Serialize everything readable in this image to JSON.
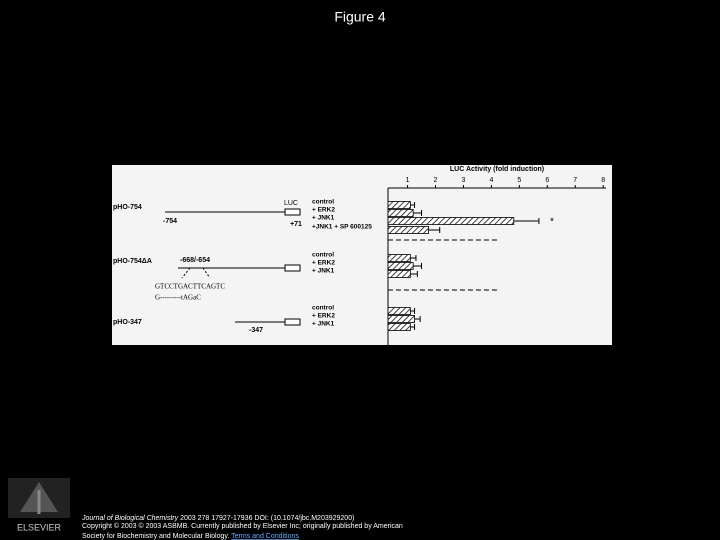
{
  "slide_title": "Figure 4",
  "figure": {
    "constructs": [
      {
        "name": "pHO-754",
        "labels": [
          "-754",
          "+71"
        ]
      },
      {
        "name": "pHO-754ΔA",
        "labels": [
          "-668/-654"
        ]
      },
      {
        "name": "pHO-347",
        "labels": [
          "-347"
        ]
      }
    ],
    "luc_label": "LUC",
    "sequence_wt": "GTCCTGACTTCAGTC",
    "sequence_mut": "G---------tAGaC"
  },
  "chart_data": {
    "type": "bar",
    "x_label": "LUC Activity (fold induction)",
    "categories": [
      "control",
      "+ ERK2",
      "+ JNK1",
      "+JNK1 + SP 600125",
      "control",
      "+ ERK2",
      "+ JNK1",
      "control",
      "+ ERK2",
      "+ JNK1"
    ],
    "values": [
      1.1,
      1.2,
      4.8,
      1.75,
      1.1,
      1.2,
      1.1,
      1.1,
      1.25,
      1.1
    ],
    "errors": [
      0.15,
      0.3,
      0.9,
      0.4,
      0.2,
      0.3,
      0.25,
      0.15,
      0.2,
      0.15
    ],
    "xlim": [
      0.3,
      8.1
    ],
    "xticks": [
      1,
      2,
      3,
      4,
      5,
      6,
      7,
      8
    ],
    "annotation": "*"
  },
  "publisher": "ELSEVIER",
  "citation": {
    "journal": "Journal of Biological Chemistry",
    "details": "2003 278 17927-17936 DOI: (10.1074/jbc.M203929200)",
    "copyright_1": "Copyright © 2003 © 2003 ASBMB. Currently published by Elsevier Inc; originally published by American",
    "copyright_2": "Society for Biochemistry and Molecular Biology.",
    "link": "Terms and Conditions"
  }
}
